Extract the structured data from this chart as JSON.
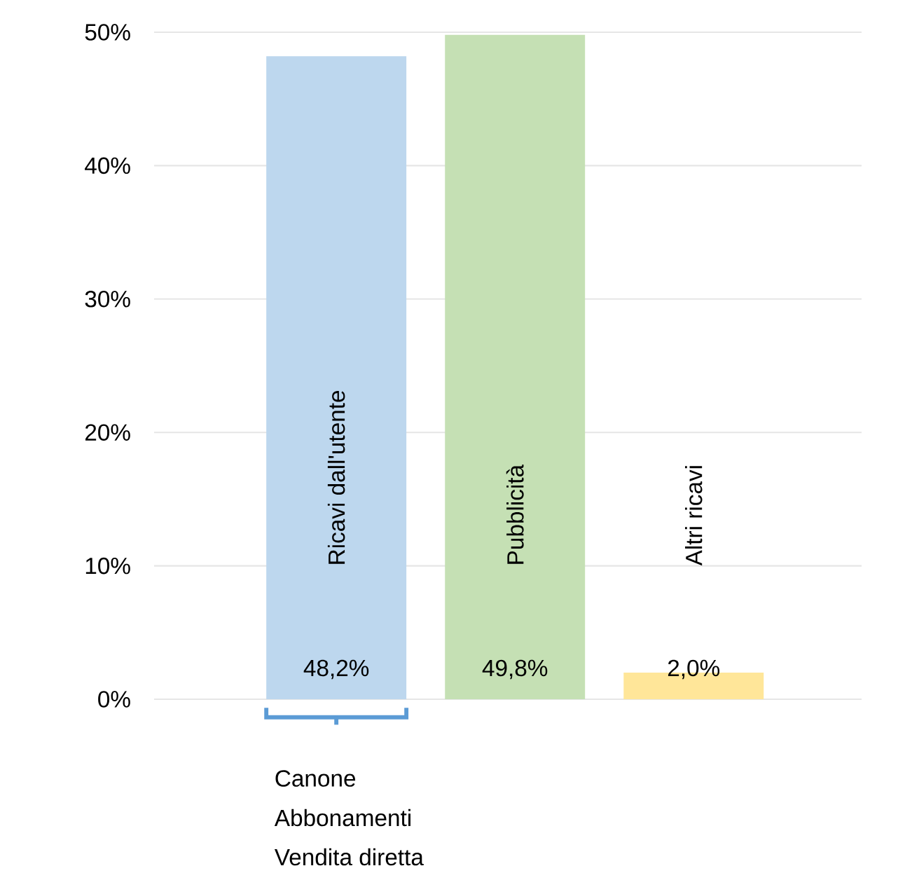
{
  "chart_data": {
    "type": "bar",
    "categories": [
      "Ricavi dall'utente",
      "Pubblicità",
      "Altri ricavi"
    ],
    "values": [
      48.2,
      49.8,
      2.0
    ],
    "colors": [
      "#bdd7ee",
      "#c5e0b4",
      "#ffe699"
    ],
    "value_labels": [
      "48,2%",
      "49,8%",
      "2,0%"
    ],
    "ylim": [
      0,
      50
    ],
    "yticks": [
      {
        "value": 0,
        "label": "0%"
      },
      {
        "value": 10,
        "label": "10%"
      },
      {
        "value": 20,
        "label": "20%"
      },
      {
        "value": 30,
        "label": "30%"
      },
      {
        "value": 40,
        "label": "40%"
      },
      {
        "value": 50,
        "label": "50%"
      }
    ],
    "grid": "y",
    "annotations": [
      "Canone",
      "Abbonamenti",
      "Vendita diretta"
    ]
  }
}
